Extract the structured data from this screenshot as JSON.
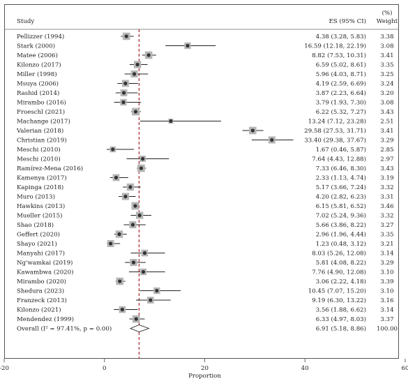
{
  "chart_data": {
    "type": "forest",
    "header": {
      "study": "Study",
      "es": "ES (95% CI)",
      "weight_top": "(%)",
      "weight": "Weight"
    },
    "xlabel": "Proportion",
    "xlim": [
      -20,
      60
    ],
    "xticks": [
      -20,
      0,
      20,
      40,
      60
    ],
    "overall_estimate": 6.91,
    "studies": [
      {
        "name": "Pellizzer (1994)",
        "es": 4.38,
        "lo": 3.28,
        "hi": 5.83,
        "ci": "4.38 (3.28, 5.83)",
        "weight": "3.38"
      },
      {
        "name": "Stark (2000)",
        "es": 16.59,
        "lo": 12.18,
        "hi": 22.19,
        "ci": "16.59 (12.18, 22.19)",
        "weight": "3.08"
      },
      {
        "name": "Matee (2006)",
        "es": 8.82,
        "lo": 7.53,
        "hi": 10.31,
        "ci": "8.82 (7.53, 10.31)",
        "weight": "3.41"
      },
      {
        "name": "Kilonzo (2017)",
        "es": 6.59,
        "lo": 5.02,
        "hi": 8.61,
        "ci": "6.59 (5.02, 8.61)",
        "weight": "3.35"
      },
      {
        "name": "Miller (1998)",
        "es": 5.96,
        "lo": 4.03,
        "hi": 8.71,
        "ci": "5.96 (4.03, 8.71)",
        "weight": "3.25"
      },
      {
        "name": "Msuya (2006)",
        "es": 4.19,
        "lo": 2.59,
        "hi": 6.69,
        "ci": "4.19 (2.59, 6.69)",
        "weight": "3.24"
      },
      {
        "name": "Rashid (2014)",
        "es": 3.87,
        "lo": 2.23,
        "hi": 6.64,
        "ci": "3.87 (2.23, 6.64)",
        "weight": "3.20"
      },
      {
        "name": "Mirambo (2016)",
        "es": 3.79,
        "lo": 1.93,
        "hi": 7.3,
        "ci": "3.79 (1.93, 7.30)",
        "weight": "3.08"
      },
      {
        "name": "Froeschl (2021)",
        "es": 6.22,
        "lo": 5.32,
        "hi": 7.27,
        "ci": "6.22 (5.32, 7.27)",
        "weight": "3.43"
      },
      {
        "name": "Machange (2017)",
        "es": 13.24,
        "lo": 7.12,
        "hi": 23.28,
        "ci": "13.24 (7.12, 23.28)",
        "weight": "2.51"
      },
      {
        "name": "Valerian (2018)",
        "es": 29.58,
        "lo": 27.53,
        "hi": 31.71,
        "ci": "29.58 (27.53, 31.71)",
        "weight": "3.41"
      },
      {
        "name": "Christian (2019)",
        "es": 33.4,
        "lo": 29.38,
        "hi": 37.67,
        "ci": "33.40 (29.38, 37.67)",
        "weight": "3.29"
      },
      {
        "name": "Meschi (2010)",
        "es": 1.67,
        "lo": 0.46,
        "hi": 5.87,
        "ci": "1.67 (0.46, 5.87)",
        "weight": "2.85"
      },
      {
        "name": "Meschi (2010)",
        "es": 7.64,
        "lo": 4.43,
        "hi": 12.88,
        "ci": "7.64 (4.43, 12.88)",
        "weight": "2.97"
      },
      {
        "name": "Ramírez-Mena (2016)",
        "es": 7.33,
        "lo": 6.46,
        "hi": 8.3,
        "ci": "7.33 (6.46, 8.30)",
        "weight": "3.43"
      },
      {
        "name": "Kamenya (2017)",
        "es": 2.33,
        "lo": 1.13,
        "hi": 4.74,
        "ci": "2.33 (1.13, 4.74)",
        "weight": "3.19"
      },
      {
        "name": "Kapinga (2018)",
        "es": 5.17,
        "lo": 3.66,
        "hi": 7.24,
        "ci": "5.17 (3.66, 7.24)",
        "weight": "3.32"
      },
      {
        "name": "Muro (2013)",
        "es": 4.2,
        "lo": 2.82,
        "hi": 6.23,
        "ci": "4.20 (2.82, 6.23)",
        "weight": "3.31"
      },
      {
        "name": "Hawkins (2013)",
        "es": 6.15,
        "lo": 5.81,
        "hi": 6.52,
        "ci": "6.15 (5.81, 6.52)",
        "weight": "3.46"
      },
      {
        "name": "Mueller (2015)",
        "es": 7.02,
        "lo": 5.24,
        "hi": 9.36,
        "ci": "7.02 (5.24, 9.36)",
        "weight": "3.32"
      },
      {
        "name": "Shao (2018)",
        "es": 5.66,
        "lo": 3.86,
        "hi": 8.22,
        "ci": "5.66 (3.86, 8.22)",
        "weight": "3.27"
      },
      {
        "name": "Geffert (2020)",
        "es": 2.96,
        "lo": 1.96,
        "hi": 4.44,
        "ci": "2.96 (1.96, 4.44)",
        "weight": "3.35"
      },
      {
        "name": "Shayo (2021)",
        "es": 1.23,
        "lo": 0.48,
        "hi": 3.12,
        "ci": "1.23 (0.48, 3.12)",
        "weight": "3.21"
      },
      {
        "name": "Manyahi (2017)",
        "es": 8.03,
        "lo": 5.26,
        "hi": 12.08,
        "ci": "8.03 (5.26, 12.08)",
        "weight": "3.14"
      },
      {
        "name": "Ng'wamkai (2019)",
        "es": 5.81,
        "lo": 4.08,
        "hi": 8.22,
        "ci": "5.81 (4.08, 8.22)",
        "weight": "3.29"
      },
      {
        "name": "Kawambwa (2020)",
        "es": 7.76,
        "lo": 4.9,
        "hi": 12.08,
        "ci": "7.76 (4.90, 12.08)",
        "weight": "3.10"
      },
      {
        "name": "Mirambo (2020)",
        "es": 3.06,
        "lo": 2.22,
        "hi": 4.18,
        "ci": "3.06 (2.22, 4.18)",
        "weight": "3.39"
      },
      {
        "name": "Shedura (2023)",
        "es": 10.45,
        "lo": 7.07,
        "hi": 15.2,
        "ci": "10.45 (7.07, 15.20)",
        "weight": "3.10"
      },
      {
        "name": "Franzeck (2013)",
        "es": 9.19,
        "lo": 6.3,
        "hi": 13.22,
        "ci": "9.19 (6.30, 13.22)",
        "weight": "3.16"
      },
      {
        "name": "Kilonzo (2021)",
        "es": 3.56,
        "lo": 1.88,
        "hi": 6.62,
        "ci": "3.56 (1.88, 6.62)",
        "weight": "3.14"
      },
      {
        "name": "Mendendez (1999)",
        "es": 6.33,
        "lo": 4.97,
        "hi": 8.03,
        "ci": "6.33 (4.97, 8.03)",
        "weight": "3.37"
      }
    ],
    "overall": {
      "name": "Overall (I² = 97.41%, p = 0.00)",
      "es": 6.91,
      "lo": 5.18,
      "hi": 8.86,
      "ci": "6.91 (5.18, 8.86)",
      "weight": "100.00"
    }
  },
  "colors": {
    "marker": "#333333",
    "box": "#b5b5b5",
    "ref_line": "#a8232a",
    "line": "#222222",
    "frame": "#555555"
  }
}
